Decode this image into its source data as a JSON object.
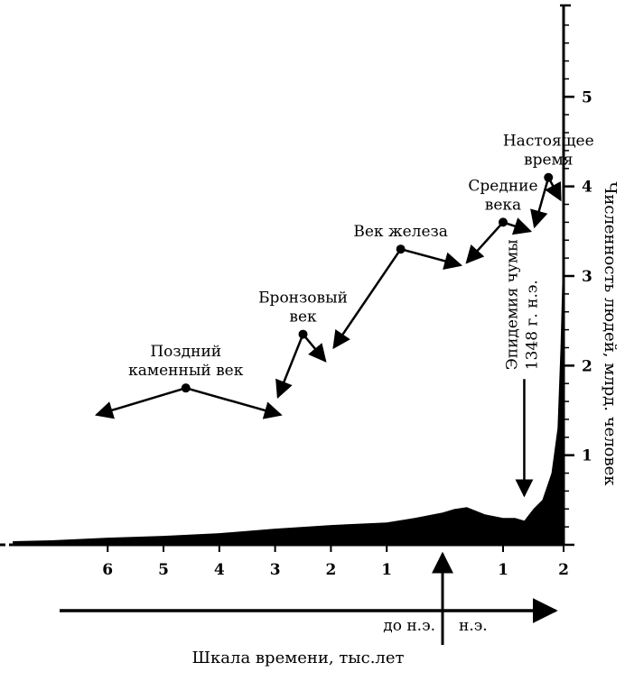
{
  "chart_data": {
    "type": "area",
    "xlabel": "Шкала времени, тыс.лет",
    "ylabel": "Численность людей, млрд. человек",
    "x_ticks": [
      {
        "x": -6,
        "label": "6"
      },
      {
        "x": -5,
        "label": "5"
      },
      {
        "x": -4,
        "label": "4"
      },
      {
        "x": -3,
        "label": "3"
      },
      {
        "x": -2,
        "label": "2"
      },
      {
        "x": -1,
        "label": "1"
      },
      {
        "x": 1,
        "label": "1"
      },
      {
        "x": 2,
        "label": "2"
      }
    ],
    "y_ticks": [
      {
        "y": 1,
        "label": "1"
      },
      {
        "y": 2,
        "label": "2"
      },
      {
        "y": 3,
        "label": "3"
      },
      {
        "y": 4,
        "label": "4"
      },
      {
        "y": 5,
        "label": "5"
      }
    ],
    "xlim": [
      -7.8,
      2.0
    ],
    "ylim": [
      0,
      6
    ],
    "era_labels": {
      "bc": "до н.э.",
      "ad": "н.э."
    },
    "points": [
      {
        "x": -7.7,
        "y": 0.04
      },
      {
        "x": -7.0,
        "y": 0.05
      },
      {
        "x": -6.0,
        "y": 0.08
      },
      {
        "x": -5.0,
        "y": 0.1
      },
      {
        "x": -4.0,
        "y": 0.13
      },
      {
        "x": -3.0,
        "y": 0.18
      },
      {
        "x": -2.0,
        "y": 0.22
      },
      {
        "x": -1.0,
        "y": 0.25
      },
      {
        "x": -0.5,
        "y": 0.3
      },
      {
        "x": 0.0,
        "y": 0.36
      },
      {
        "x": 0.2,
        "y": 0.4
      },
      {
        "x": 0.4,
        "y": 0.42
      },
      {
        "x": 0.7,
        "y": 0.34
      },
      {
        "x": 1.0,
        "y": 0.3
      },
      {
        "x": 1.2,
        "y": 0.3
      },
      {
        "x": 1.35,
        "y": 0.27
      },
      {
        "x": 1.5,
        "y": 0.4
      },
      {
        "x": 1.65,
        "y": 0.5
      },
      {
        "x": 1.8,
        "y": 0.8
      },
      {
        "x": 1.9,
        "y": 1.3
      },
      {
        "x": 1.95,
        "y": 2.2
      },
      {
        "x": 1.98,
        "y": 3.0
      },
      {
        "x": 2.0,
        "y": 3.0
      }
    ],
    "annotations": [
      {
        "label_lines": [
          "Поздний",
          "каменный век"
        ],
        "dot": {
          "x": -4.6,
          "y": 1.75
        },
        "arrow_tips": [
          {
            "x": -6.2,
            "y": 1.45
          },
          {
            "x": -2.9,
            "y": 1.45
          }
        ]
      },
      {
        "label_lines": [
          "Бронзовый",
          "век"
        ],
        "dot": {
          "x": -2.5,
          "y": 2.35
        },
        "arrow_tips": [
          {
            "x": -2.95,
            "y": 1.65
          },
          {
            "x": -2.1,
            "y": 2.05
          }
        ]
      },
      {
        "label_lines": [
          "Век железа"
        ],
        "dot": {
          "x": -0.75,
          "y": 3.3
        },
        "arrow_tips": [
          {
            "x": -1.95,
            "y": 2.2
          },
          {
            "x": 0.3,
            "y": 3.12
          }
        ]
      },
      {
        "label_lines": [
          "Средние",
          "века"
        ],
        "dot": {
          "x": 1.0,
          "y": 3.6
        },
        "arrow_tips": [
          {
            "x": 0.4,
            "y": 3.15
          },
          {
            "x": 1.45,
            "y": 3.5
          }
        ]
      },
      {
        "label_lines": [
          "Настоящее",
          "время"
        ],
        "dot": {
          "x": 1.75,
          "y": 4.1
        },
        "arrow_tips": [
          {
            "x": 1.52,
            "y": 3.55
          },
          {
            "x": 1.95,
            "y": 3.85
          }
        ]
      }
    ],
    "event": {
      "label_lines": [
        "Эпидемия чумы",
        "1348 г. н.э."
      ],
      "arrow_from": {
        "x": 1.35,
        "y": 1.85
      },
      "arrow_to": {
        "x": 1.35,
        "y": 0.55
      }
    }
  }
}
